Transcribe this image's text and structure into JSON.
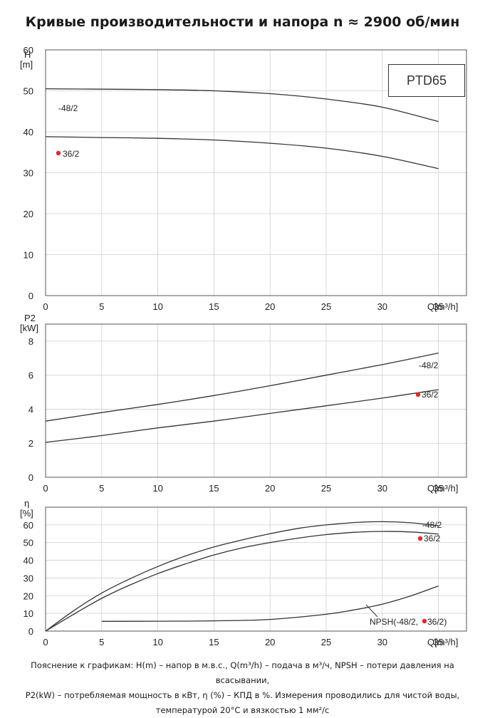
{
  "title": "Кривые производительности и напора n ≈ 2900 об/мин",
  "model_label": "PTD65",
  "footnote": [
    "Пояснение к графикам: H(m) – напор в м.в.с., Q(m³/h) – подача в м³/ч, NPSH – потери давления на всасывании,",
    "P2(kW) – потребляемая мощность в кВт, η (%) – КПД в %. Измерения проводились для чистой воды,",
    "температурой 20°С и вязкостью 1 мм²/с"
  ],
  "colors": {
    "curve": "#333333",
    "grid": "#cfcfcf",
    "marker": "#e0282e"
  },
  "chart_data": [
    {
      "type": "line",
      "name": "head",
      "ylabel_lines": [
        "H",
        "[m]"
      ],
      "xlabel": "Q[m³/h]",
      "xlim": [
        0,
        37.5
      ],
      "ylim": [
        0,
        60
      ],
      "xticks": [
        0,
        5,
        10,
        15,
        20,
        25,
        30,
        35
      ],
      "yticks": [
        0,
        10,
        20,
        30,
        40,
        50,
        60
      ],
      "grid": true,
      "series": [
        {
          "name": "-48/2",
          "marker": false,
          "x": [
            0,
            5,
            10,
            15,
            20,
            25,
            30,
            35
          ],
          "y": [
            50.5,
            50.4,
            50.3,
            50.0,
            49.3,
            48.0,
            46.0,
            42.5
          ]
        },
        {
          "name": "36/2",
          "marker": true,
          "x": [
            0,
            5,
            10,
            15,
            20,
            25,
            30,
            35
          ],
          "y": [
            38.8,
            38.6,
            38.4,
            38.0,
            37.2,
            36.0,
            34.0,
            31.0
          ]
        }
      ]
    },
    {
      "type": "line",
      "name": "power",
      "ylabel_lines": [
        "P2",
        "[kW]"
      ],
      "xlabel": "Q[m³/h]",
      "xlim": [
        0,
        37.5
      ],
      "ylim": [
        0,
        9
      ],
      "xticks": [
        0,
        5,
        10,
        15,
        20,
        25,
        30,
        35
      ],
      "yticks": [
        0,
        2,
        4,
        6,
        8
      ],
      "grid": true,
      "series": [
        {
          "name": "-48/2",
          "marker": false,
          "x": [
            0,
            5,
            10,
            15,
            20,
            25,
            30,
            35
          ],
          "y": [
            3.3,
            3.8,
            4.28,
            4.8,
            5.38,
            6.0,
            6.62,
            7.3
          ]
        },
        {
          "name": "36/2",
          "marker": true,
          "x": [
            0,
            5,
            10,
            15,
            20,
            25,
            30,
            35
          ],
          "y": [
            2.05,
            2.45,
            2.9,
            3.3,
            3.75,
            4.2,
            4.65,
            5.15
          ]
        }
      ]
    },
    {
      "type": "line",
      "name": "efficiency",
      "ylabel_lines": [
        "η",
        "[%]"
      ],
      "xlabel": "Q[m³/h]",
      "xlim": [
        0,
        37.5
      ],
      "ylim": [
        0,
        70
      ],
      "xticks": [
        0,
        5,
        10,
        15,
        20,
        25,
        30,
        35
      ],
      "yticks": [
        0,
        10,
        20,
        30,
        40,
        50,
        60
      ],
      "grid": true,
      "series": [
        {
          "name": "-48/2",
          "marker": false,
          "x": [
            0,
            2.5,
            5,
            7.5,
            10,
            12.5,
            15,
            17.5,
            20,
            22.5,
            25,
            27.5,
            30,
            32.5,
            35
          ],
          "y": [
            0,
            11.5,
            21.5,
            29.5,
            36.5,
            42.5,
            47.5,
            51.5,
            55.0,
            58.0,
            60.0,
            61.3,
            61.8,
            61.2,
            59.5
          ]
        },
        {
          "name": "36/2",
          "marker": true,
          "x": [
            0,
            2.5,
            5,
            7.5,
            10,
            12.5,
            15,
            17.5,
            20,
            22.5,
            25,
            27.5,
            30,
            32.5,
            35
          ],
          "y": [
            0,
            9.5,
            18.5,
            26.0,
            32.5,
            38.0,
            43.0,
            47.0,
            50.0,
            52.5,
            54.5,
            55.8,
            56.3,
            56.0,
            54.8
          ]
        },
        {
          "name": "NPSH(-48/2,",
          "name2": "36/2)",
          "marker": true,
          "label_pos": "lower-right",
          "x": [
            5,
            10,
            15,
            20,
            25,
            27.5,
            30,
            32.5,
            35
          ],
          "y": [
            5.5,
            5.6,
            5.8,
            6.6,
            9.5,
            12.0,
            15.2,
            19.8,
            25.5
          ]
        }
      ]
    }
  ]
}
